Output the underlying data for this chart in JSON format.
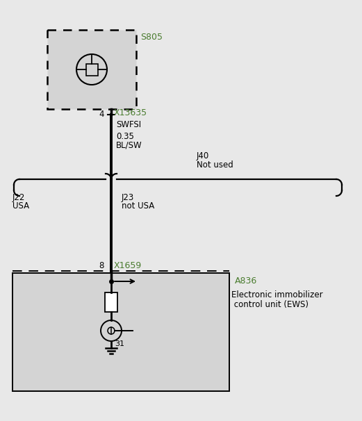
{
  "bg_color": "#e8e8e8",
  "black": "#000000",
  "green": "#4a7c2f",
  "gray_box": "#d4d4d4",
  "s805_label": "S805",
  "x13635_label": "X13635",
  "swfsi_label": "SWFSI",
  "wire_label1": "0.35",
  "wire_label2": "BL/SW",
  "pin4_label": "4",
  "j40_label": "J40",
  "j40_label2": "Not used",
  "j22_label": "J22",
  "j22_label2": "USA",
  "j23_label": "J23",
  "j23_label2": "not USA",
  "pin8_label": "8",
  "x1659_label": "X1659",
  "a836_label": "A836",
  "ews_label1": "Electronic immobilizer",
  "ews_label2": " control unit (EWS)",
  "pin31_label": "31"
}
